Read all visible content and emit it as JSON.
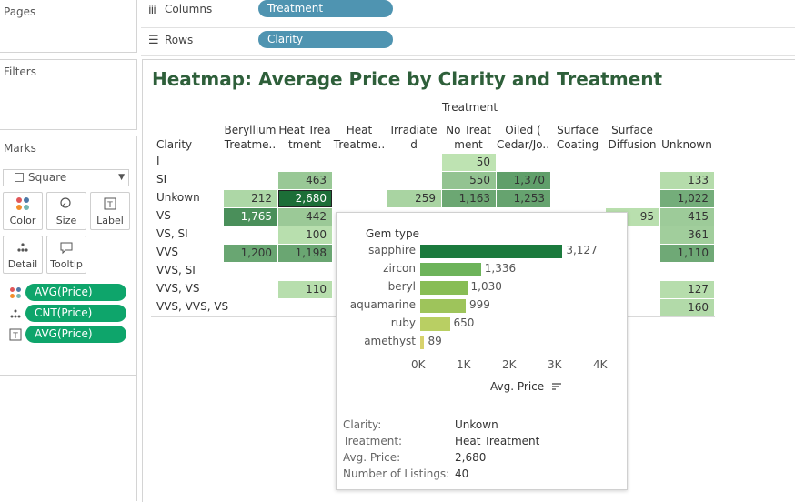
{
  "panes": {
    "pages": "Pages",
    "filters": "Filters",
    "marks": "Marks"
  },
  "marks": {
    "type": "Square",
    "buttons": [
      "Color",
      "Size",
      "Label",
      "Detail",
      "Tooltip"
    ],
    "pills": [
      "AVG(Price)",
      "CNT(Price)",
      "AVG(Price)"
    ]
  },
  "shelves": {
    "columns_label": "Columns",
    "columns_pill": "Treatment",
    "rows_label": "Rows",
    "rows_pill": "Clarity"
  },
  "view": {
    "title": "Heatmap: Average Price by Clarity and Treatment",
    "column_field": "Treatment",
    "row_field": "Clarity"
  },
  "colors": {
    "title": "#2e5f3a",
    "pill_blue": "#4f94b1",
    "pill_green": "#0ea56b",
    "tooltip_bar_max": "#0f6b35"
  },
  "chart_data": {
    "type": "heatmap",
    "columns": [
      "Beryllium Treatme..",
      "Heat Trea tment",
      "Heat Treatme..",
      "Irradiated",
      "No Treat ment",
      "Oiled ( Cedar/Jo..",
      "Surface Coating",
      "Surface Diffusion",
      "Unknown"
    ],
    "rows": [
      "I",
      "SI",
      "Unkown",
      "VS",
      "VS, SI",
      "VVS",
      "VVS, SI",
      "VVS, VS",
      "VVS, VVS, VS"
    ],
    "values": [
      [
        null,
        null,
        null,
        null,
        50,
        null,
        null,
        null,
        null
      ],
      [
        null,
        463,
        null,
        null,
        550,
        1370,
        null,
        null,
        133
      ],
      [
        212,
        2680,
        null,
        259,
        1163,
        1253,
        null,
        null,
        1022
      ],
      [
        1765,
        442,
        null,
        null,
        null,
        null,
        null,
        95,
        415
      ],
      [
        null,
        100,
        null,
        null,
        null,
        null,
        null,
        null,
        361
      ],
      [
        1200,
        1198,
        null,
        null,
        null,
        null,
        null,
        null,
        1110
      ],
      [
        null,
        null,
        null,
        null,
        null,
        null,
        null,
        null,
        null
      ],
      [
        null,
        110,
        null,
        null,
        null,
        null,
        null,
        null,
        127
      ],
      [
        null,
        null,
        null,
        null,
        null,
        null,
        null,
        null,
        160
      ]
    ],
    "labels": [
      [
        "",
        "",
        "",
        "",
        "50",
        "",
        "",
        "",
        ""
      ],
      [
        "",
        "463",
        "",
        "",
        "550",
        "1,370",
        "",
        "",
        "133"
      ],
      [
        "212",
        "2,680",
        "",
        "259",
        "1,163",
        "1,253",
        "",
        "",
        "1,022"
      ],
      [
        "1,765",
        "442",
        "",
        "",
        "",
        "",
        "",
        "95",
        "415"
      ],
      [
        "",
        "100",
        "",
        "",
        "",
        "",
        "",
        "",
        "361"
      ],
      [
        "1,200",
        "1,198",
        "",
        "",
        "",
        "",
        "",
        "",
        "1,110"
      ],
      [
        "",
        "",
        "",
        "",
        "",
        "",
        "",
        "",
        ""
      ],
      [
        "",
        "110",
        "",
        "",
        "",
        "",
        "",
        "",
        "127"
      ],
      [
        "",
        "",
        "",
        "",
        "",
        "",
        "",
        "",
        "160"
      ]
    ],
    "selected": {
      "row": 2,
      "col": 1
    }
  },
  "tooltip": {
    "chart_title": "Gem type",
    "bars": {
      "type": "bar",
      "categories": [
        "sapphire",
        "zircon",
        "beryl",
        "aquamarine",
        "ruby",
        "amethyst"
      ],
      "values": [
        3127,
        1336,
        1030,
        999,
        650,
        89
      ],
      "labels": [
        "3,127",
        "1,336",
        "1,030",
        "999",
        "650",
        "89"
      ],
      "xticks": [
        "0K",
        "1K",
        "2K",
        "3K",
        "4K"
      ],
      "xmax": 4000,
      "xlabel": "Avg. Price"
    },
    "fields": [
      {
        "key": "Clarity:",
        "value": "Unkown"
      },
      {
        "key": "Treatment:",
        "value": "Heat Treatment"
      },
      {
        "key": "Avg. Price:",
        "value": "2,680"
      },
      {
        "key": "Number of Listings:",
        "value": "40"
      }
    ]
  }
}
